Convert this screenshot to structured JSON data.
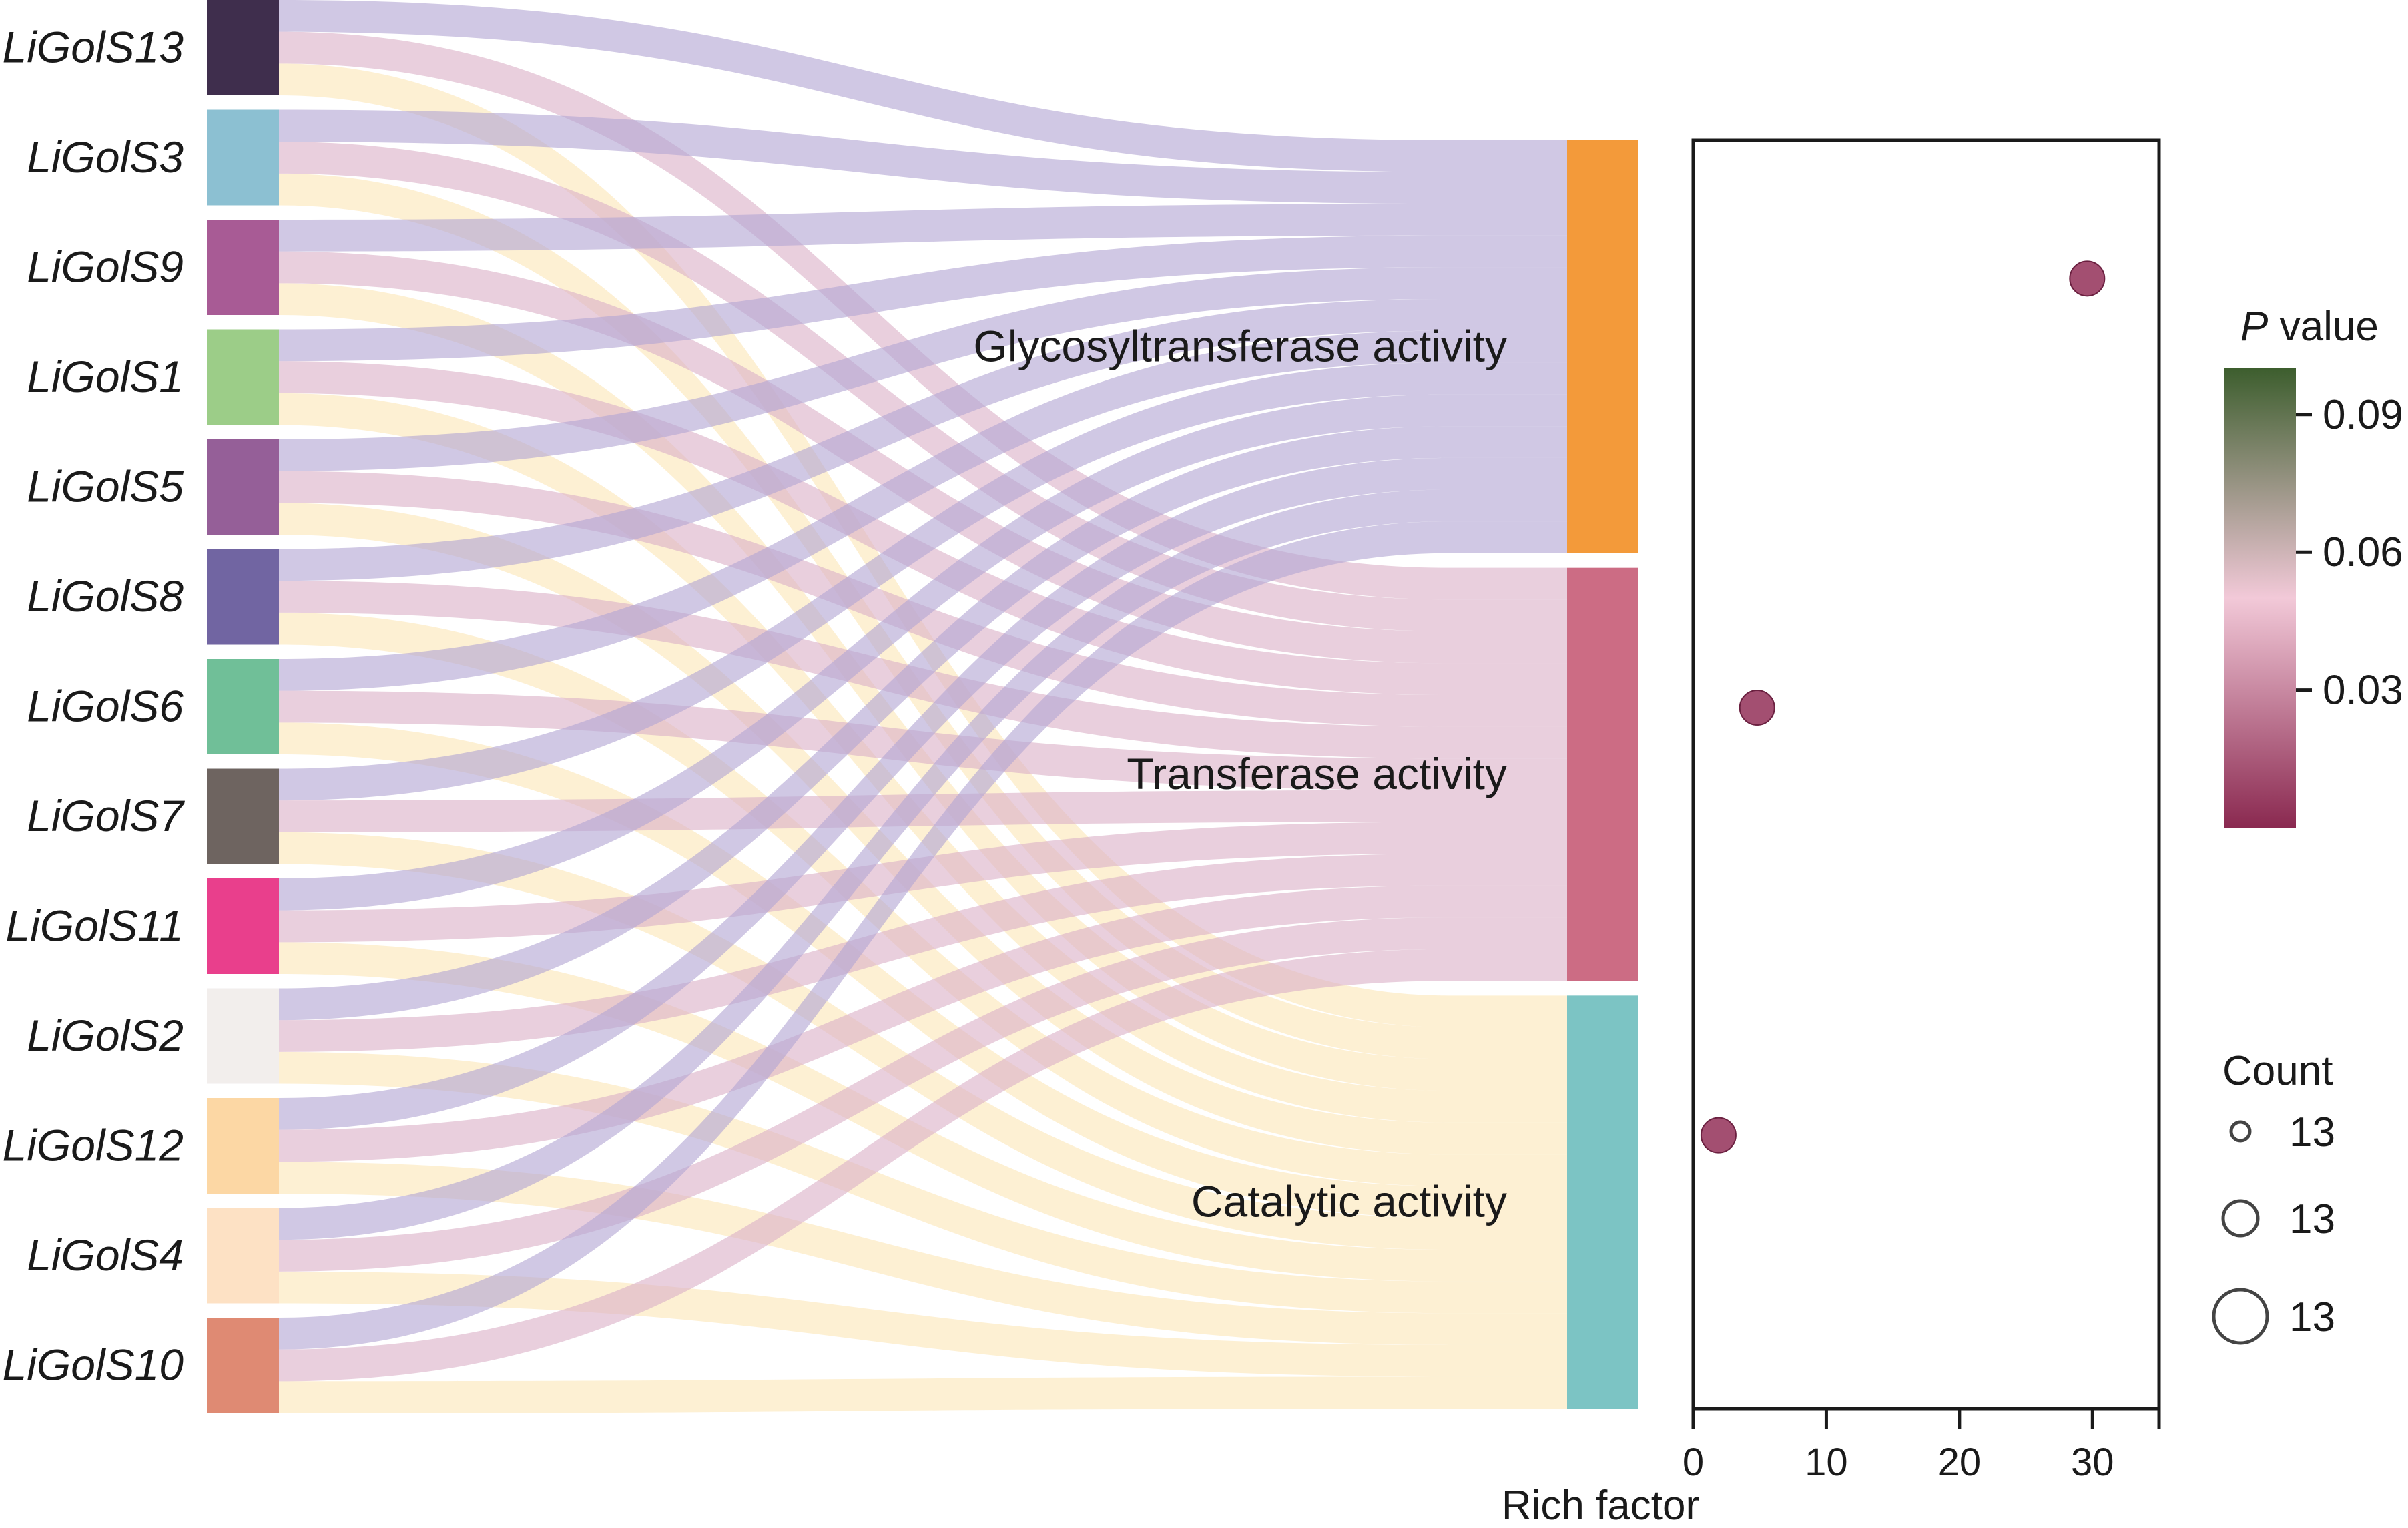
{
  "chart_data": [
    {
      "type": "sankey",
      "genes": [
        {
          "name": "LiGolS13",
          "color": "#3f2e4d"
        },
        {
          "name": "LiGolS3",
          "color": "#8cc0d2"
        },
        {
          "name": "LiGolS9",
          "color": "#a85b95"
        },
        {
          "name": "LiGolS1",
          "color": "#9ccd88"
        },
        {
          "name": "LiGolS5",
          "color": "#955f98"
        },
        {
          "name": "LiGolS8",
          "color": "#7165a2"
        },
        {
          "name": "LiGolS6",
          "color": "#70bf98"
        },
        {
          "name": "LiGolS7",
          "color": "#6e6460"
        },
        {
          "name": "LiGolS11",
          "color": "#e93f8c"
        },
        {
          "name": "LiGolS2",
          "color": "#f2eeec"
        },
        {
          "name": "LiGolS12",
          "color": "#fcd7a4"
        },
        {
          "name": "LiGolS4",
          "color": "#fde1c4"
        },
        {
          "name": "LiGolS10",
          "color": "#df8a73"
        }
      ],
      "terms": [
        {
          "name": "Glycosyltransferase activity",
          "color": "#f39a3a",
          "flow_color": "#b3a6d4"
        },
        {
          "name": "Transferase activity",
          "color": "#cc6c84",
          "flow_color": "#dcb1c8"
        },
        {
          "name": "Catalytic activity",
          "color": "#7cc4c4",
          "flow_color": "#fbe7b8"
        }
      ],
      "links_note_each_gene_to_each_term": 1
    },
    {
      "type": "scatter",
      "xlabel": "Rich factor",
      "xticks": [
        0,
        10,
        20,
        30
      ],
      "xlim": [
        0,
        35
      ],
      "points": [
        {
          "term": "Glycosyltransferase activity",
          "x": 29.6,
          "p_value": 0.012,
          "count": 13
        },
        {
          "term": "Transferase activity",
          "x": 4.8,
          "p_value": 0.012,
          "count": 13
        },
        {
          "term": "Catalytic activity",
          "x": 1.9,
          "p_value": 0.012,
          "count": 13
        }
      ],
      "color_legend": {
        "title_italic": "P",
        "title_rest": " value",
        "ticks": [
          "0.09",
          "0.06",
          "0.03"
        ],
        "colors": [
          "#3d5e2e",
          "#f2c9d8",
          "#8a2950"
        ]
      },
      "size_legend": {
        "title": "Count",
        "labels": [
          "13",
          "13",
          "13"
        ]
      }
    }
  ]
}
